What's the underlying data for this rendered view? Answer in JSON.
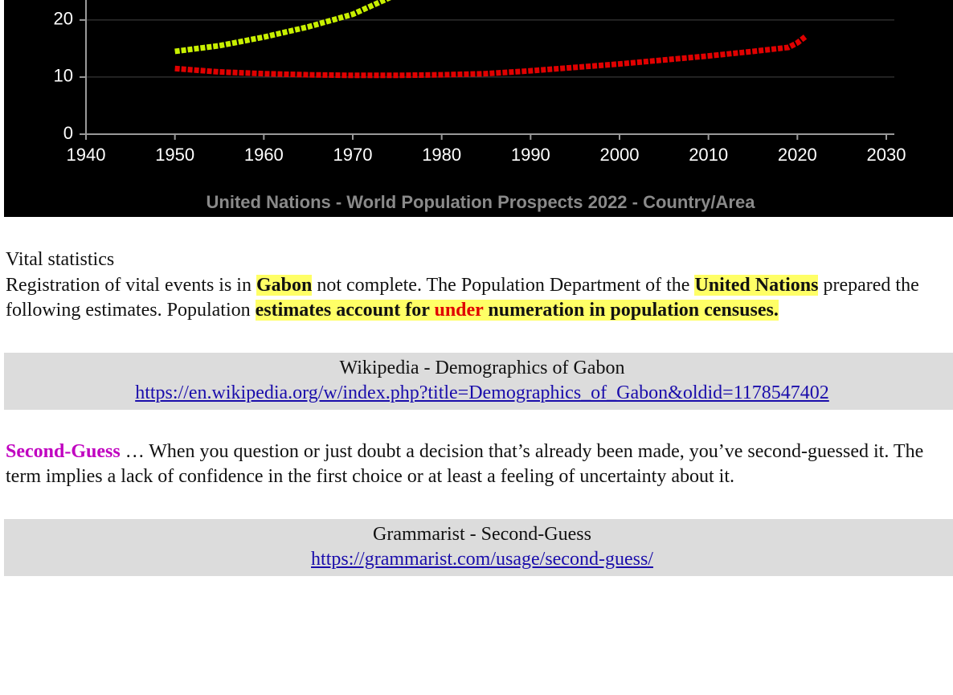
{
  "chart_data": {
    "type": "line",
    "x": [
      1950,
      1955,
      1960,
      1965,
      1970,
      1975,
      1980,
      1985,
      1990,
      1995,
      2000,
      2005,
      2010,
      2015,
      2019,
      2020,
      2021
    ],
    "series": [
      {
        "color": "#c8f000",
        "values": [
          14.5,
          15.5,
          17.0,
          18.8,
          21.0,
          24.5,
          null,
          null,
          null,
          null,
          null,
          null,
          null,
          null,
          null,
          null,
          null
        ]
      },
      {
        "color": "#e00000",
        "values": [
          11.5,
          10.9,
          10.6,
          10.4,
          10.3,
          10.3,
          10.4,
          10.6,
          11.1,
          11.7,
          12.3,
          13.0,
          13.7,
          14.5,
          15.2,
          16.0,
          17.2
        ]
      }
    ],
    "xlim": [
      1940,
      2030
    ],
    "xticks": [
      1940,
      1950,
      1960,
      1970,
      1980,
      1990,
      2000,
      2010,
      2020,
      2030
    ],
    "ylim": [
      0,
      23.5
    ],
    "yticks": [
      0,
      10,
      20
    ],
    "grid": true,
    "source": "United Nations - World Population Prospects 2022 - Country/Area"
  },
  "vital": {
    "heading": "Vital statistics",
    "text": [
      "Registration of vital events is in ",
      "Gabon",
      " not complete. The Population Department of the ",
      "United Nations",
      " prepared the following estimates. Population ",
      "estimates account for ",
      "under",
      " numeration in population censuses."
    ]
  },
  "ref1": {
    "title": "Wikipedia - Demographics of Gabon",
    "url": "https://en.wikipedia.org/w/index.php?title=Demographics_of_Gabon&oldid=1178547402"
  },
  "definition": {
    "term": "Second-Guess",
    "text": " … When you question or just doubt a decision that’s already been made, you’ve second-guessed it. The term implies a lack of confidence in the first choice or at least a feeling of uncertainty about it."
  },
  "ref2": {
    "title": "Grammarist - Second-Guess",
    "url": "https://grammarist.com/usage/second-guess/"
  }
}
